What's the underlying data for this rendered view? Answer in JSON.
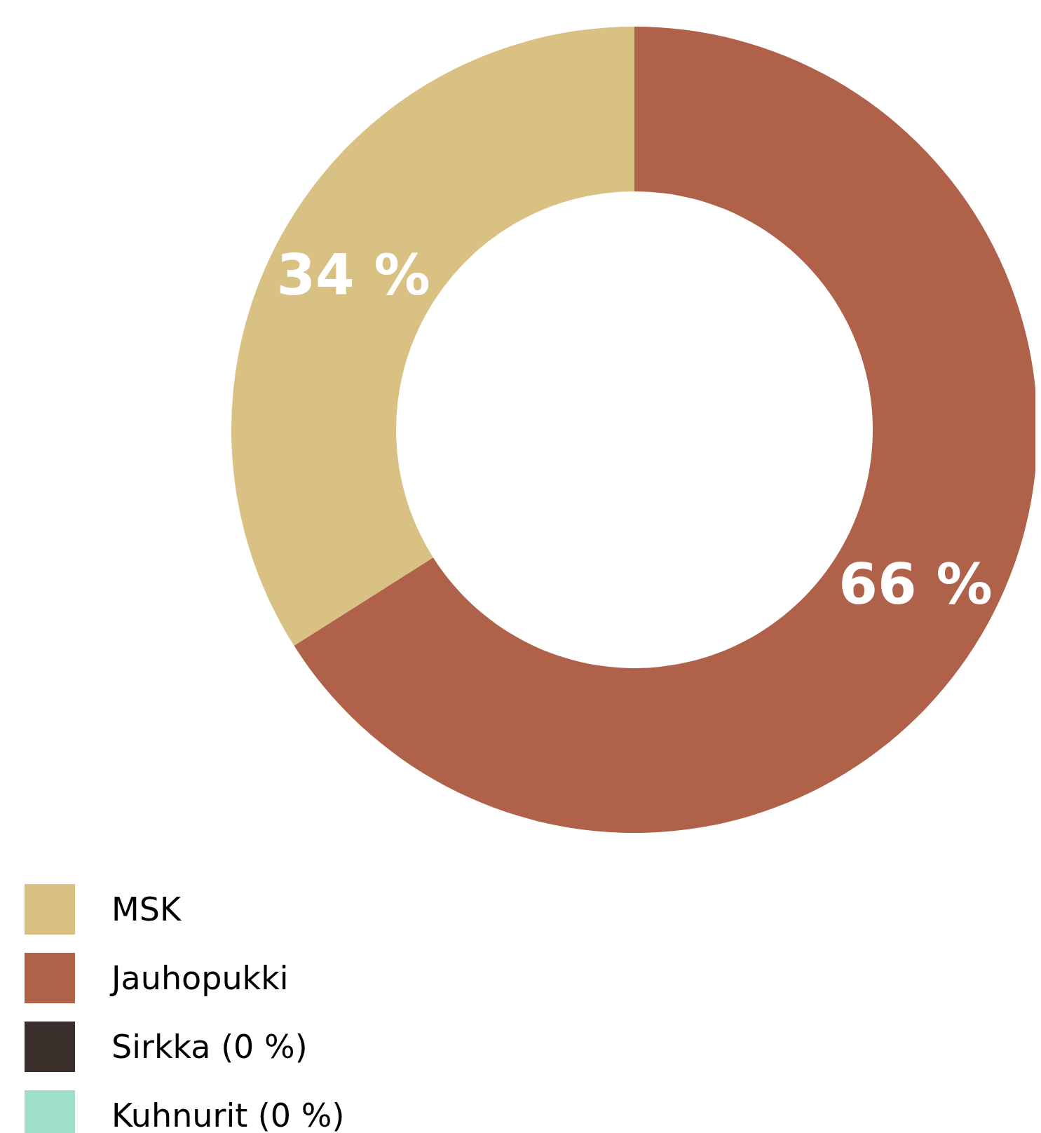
{
  "chart_data": {
    "type": "donut",
    "categories": [
      "MSK",
      "Jauhopukki",
      "Sirkka (0 %)",
      "Kuhnurit (0 %)"
    ],
    "values": [
      34,
      66,
      0,
      0
    ],
    "value_labels": [
      "34 %",
      "66 %",
      null,
      null
    ],
    "colors": [
      "#d9c184",
      "#b06149",
      "#3a2f2a",
      "#a0dfc8"
    ],
    "legend": "bottom left"
  }
}
